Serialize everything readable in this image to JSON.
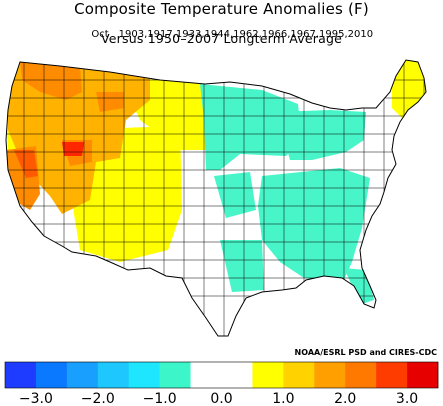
{
  "title": "Composite Temperature Anomalies (F)",
  "month": "Oct",
  "years": "1903,1917,1933,1944,1962,1966,1967,1995,2010",
  "subtitle": "Versus 1950–2007 Longterm Average",
  "credit": "NOAA/ESRL PSD and CIRES-CDC",
  "colorbar": {
    "colors": [
      "#1e3cff",
      "#0a78ff",
      "#19a0ff",
      "#1ec8ff",
      "#1ee6ff",
      "#3cf5c8",
      "#ffffff",
      "#ffffff",
      "#ffff00",
      "#ffd200",
      "#ffa000",
      "#ff7800",
      "#ff3c00",
      "#e60000"
    ],
    "tick_labels": [
      "−3.0",
      "−2.0",
      "−1.0",
      "0.0",
      "1.0",
      "2.0",
      "3.0"
    ]
  },
  "map": {
    "anomaly_colors": {
      "strong_warm": "#ff2600",
      "warm_orange_red": "#ff7f00",
      "warm_orange": "#ffb300",
      "warm_yellow": "#ffff00",
      "neutral": "#ffffff",
      "cool_teal": "#48f5c8",
      "cool_cyan": "#2ee6e6"
    }
  }
}
